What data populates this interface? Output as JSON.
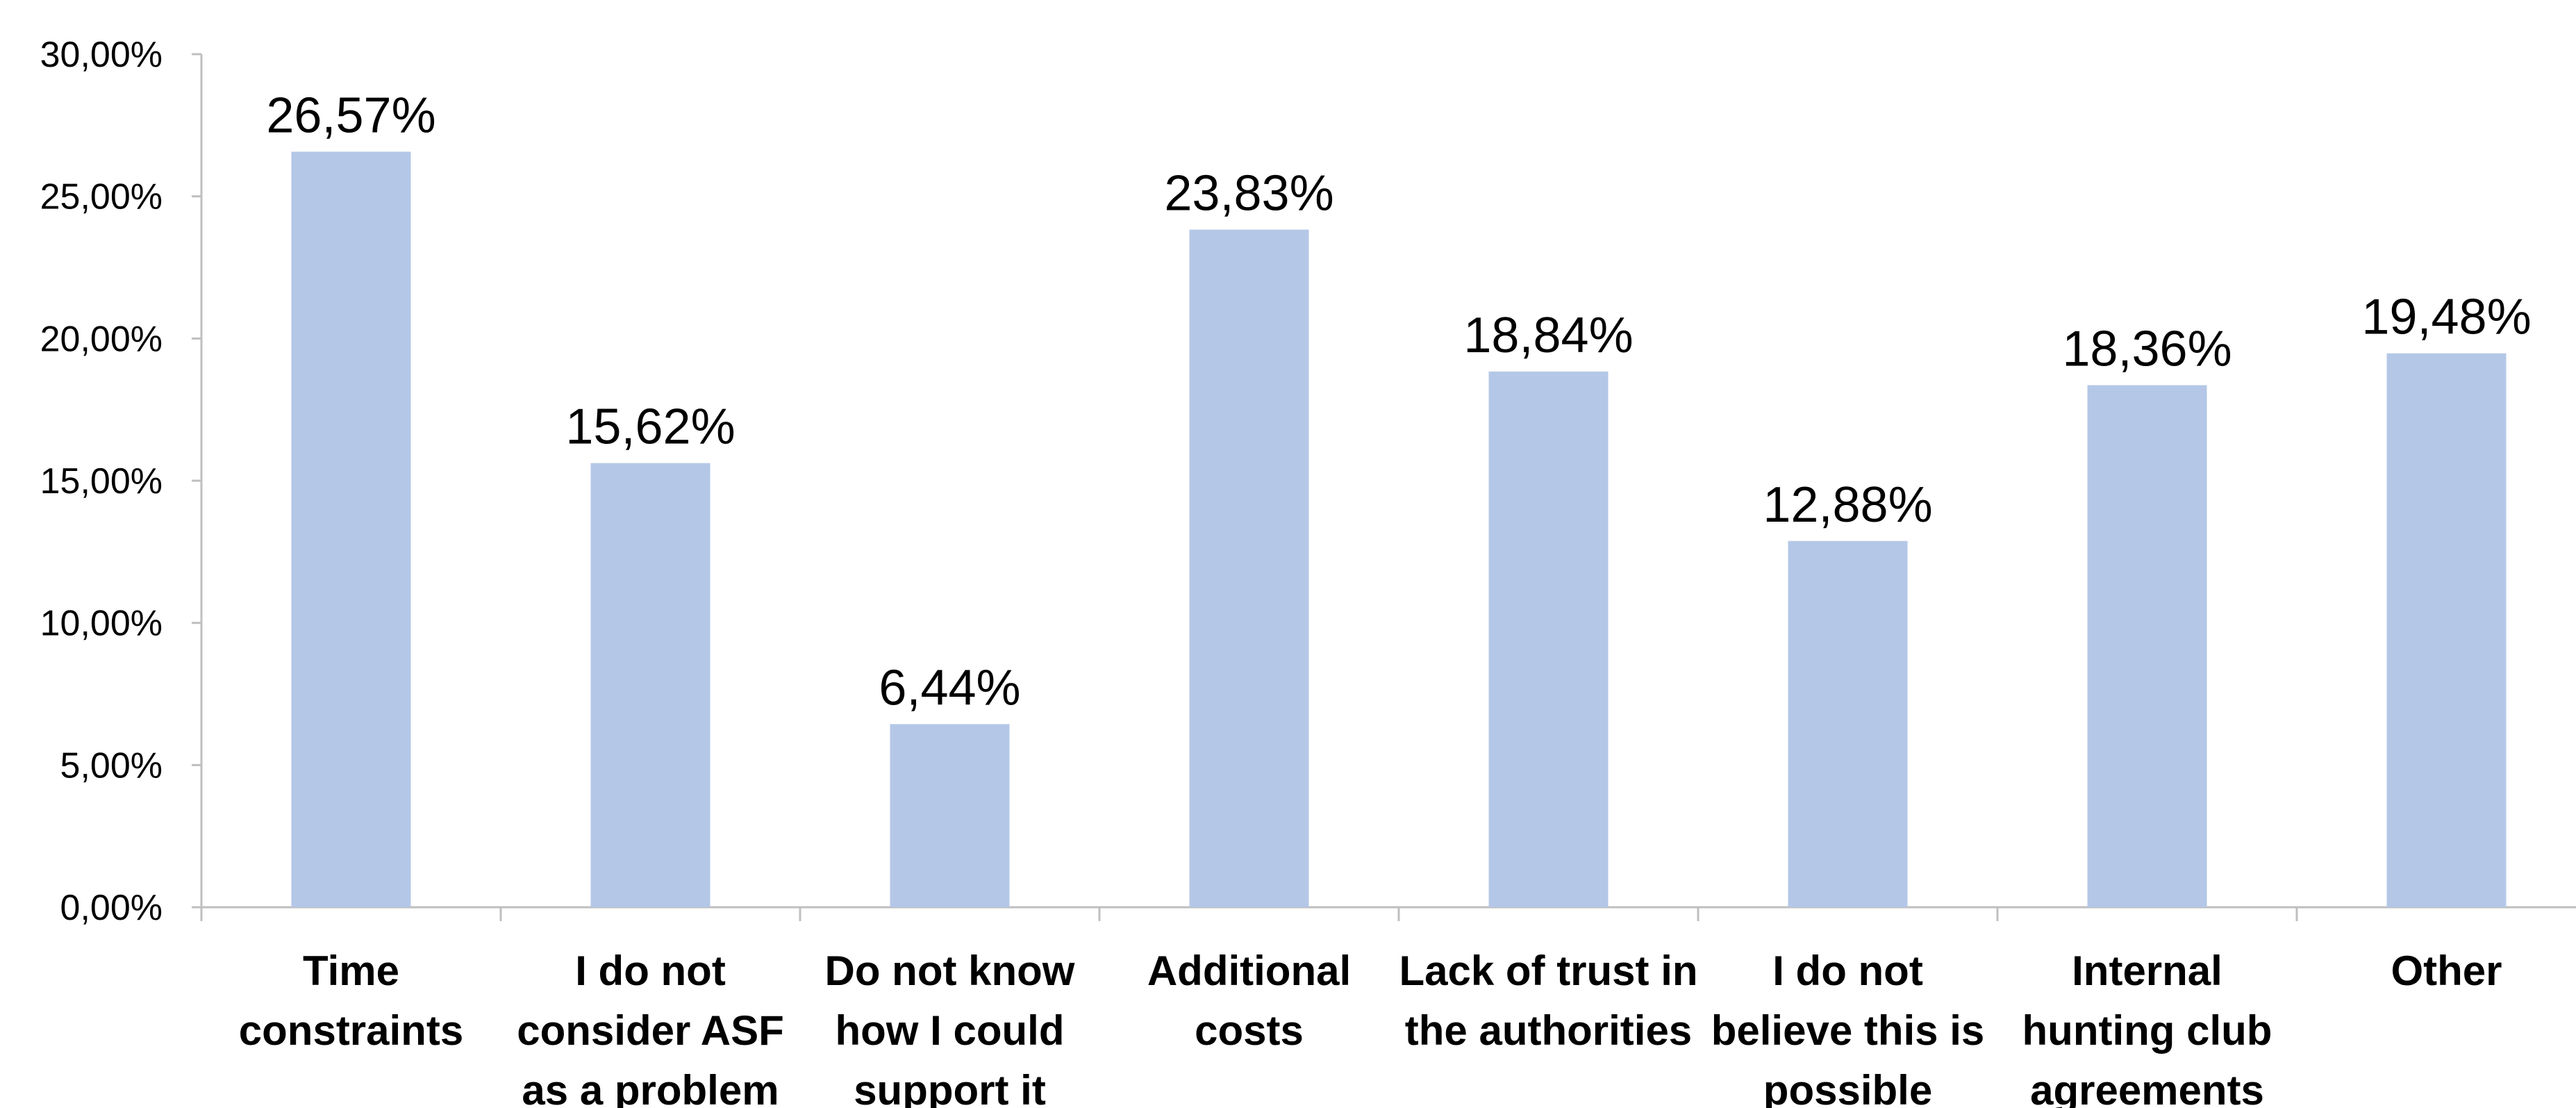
{
  "chart_data": {
    "type": "bar",
    "title": "",
    "xlabel": "",
    "ylabel": "",
    "categories": [
      [
        "Time",
        "constraints"
      ],
      [
        "I do not",
        "consider ASF",
        "as a problem"
      ],
      [
        "Do not know",
        "how I could",
        "support it"
      ],
      [
        "Additional",
        "costs"
      ],
      [
        "Lack of trust in",
        "the authorities"
      ],
      [
        "I do not",
        "believe this is",
        "possible"
      ],
      [
        "Internal",
        "hunting club",
        "agreements"
      ],
      [
        "Other"
      ]
    ],
    "values": [
      26.57,
      15.62,
      6.44,
      23.83,
      18.84,
      12.88,
      18.36,
      19.48
    ],
    "data_labels": [
      "26,57%",
      "15,62%",
      "6,44%",
      "23,83%",
      "18,84%",
      "12,88%",
      "18,36%",
      "19,48%"
    ],
    "ylim": [
      0,
      30
    ],
    "yticks": [
      0,
      5,
      10,
      15,
      20,
      25,
      30
    ],
    "ytick_labels": [
      "0,00%",
      "5,00%",
      "10,00%",
      "15,00%",
      "20,00%",
      "25,00%",
      "30,00%"
    ],
    "grid": false,
    "legend": "none",
    "colors": {
      "bar": "#b4c7e7",
      "axis": "#bfbfbf",
      "text": "#000000"
    }
  }
}
